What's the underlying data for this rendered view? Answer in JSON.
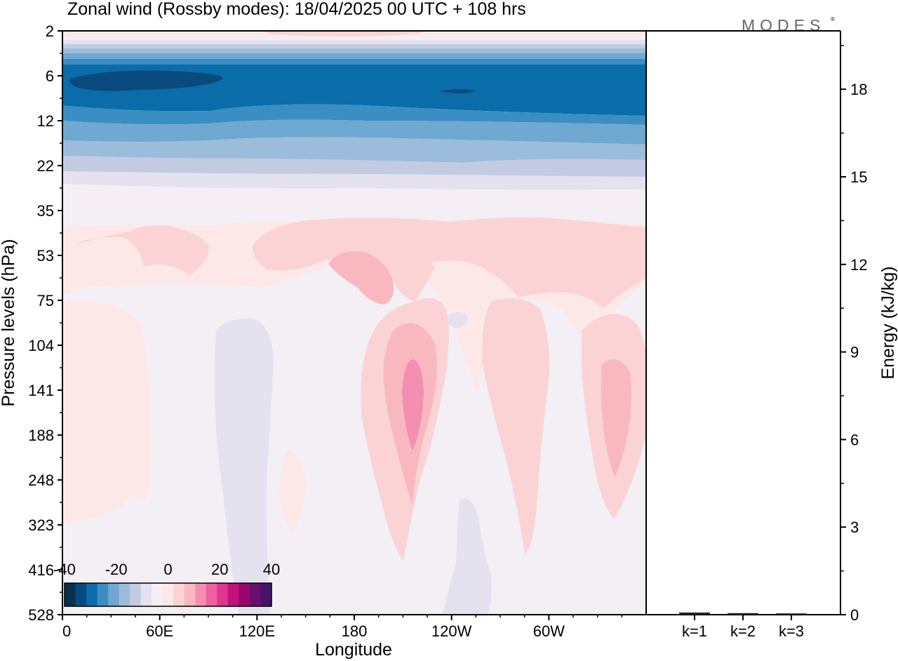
{
  "title": "Zonal wind (Rossby modes):  18/04/2025  00 UTC  + 108 hrs",
  "logo": "MODES",
  "logo_mark": "®",
  "chart_data": [
    {
      "type": "heatmap",
      "title": "Zonal wind (Rossby modes):  18/04/2025  00 UTC  + 108 hrs",
      "xlabel": "Longitude",
      "ylabel": "Pressure levels (hPa)",
      "x_ticks": [
        "0",
        "60E",
        "120E",
        "180",
        "120W",
        "60W"
      ],
      "y_ticks": [
        "2",
        "6",
        "12",
        "22",
        "35",
        "53",
        "75",
        "104",
        "141",
        "188",
        "248",
        "323",
        "416",
        "528"
      ],
      "colorbar": {
        "tick_labels": [
          "-40",
          "-20",
          "0",
          "20",
          "40"
        ],
        "range": [
          -40,
          40
        ],
        "colors": [
          "#08304f",
          "#0b4a7e",
          "#0a6ca8",
          "#3a8ec4",
          "#6fa8d0",
          "#9cbcdb",
          "#c3cbe2",
          "#e4e2ef",
          "#f6eef5",
          "#fde8e8",
          "#fbd3d5",
          "#f9b8c0",
          "#f58fb2",
          "#ee609f",
          "#e0358e",
          "#c2117b",
          "#98066d",
          "#6a0f6e",
          "#48146b"
        ]
      }
    },
    {
      "type": "bar",
      "categories": [
        "k=1",
        "k=2",
        "k=3"
      ],
      "values": [
        0.05,
        0.03,
        0.02
      ],
      "ylabel": "Energy (kJ/kg)",
      "ylim": [
        0,
        20
      ],
      "y_ticks": [
        "0",
        "3",
        "6",
        "9",
        "12",
        "15",
        "18"
      ]
    }
  ]
}
